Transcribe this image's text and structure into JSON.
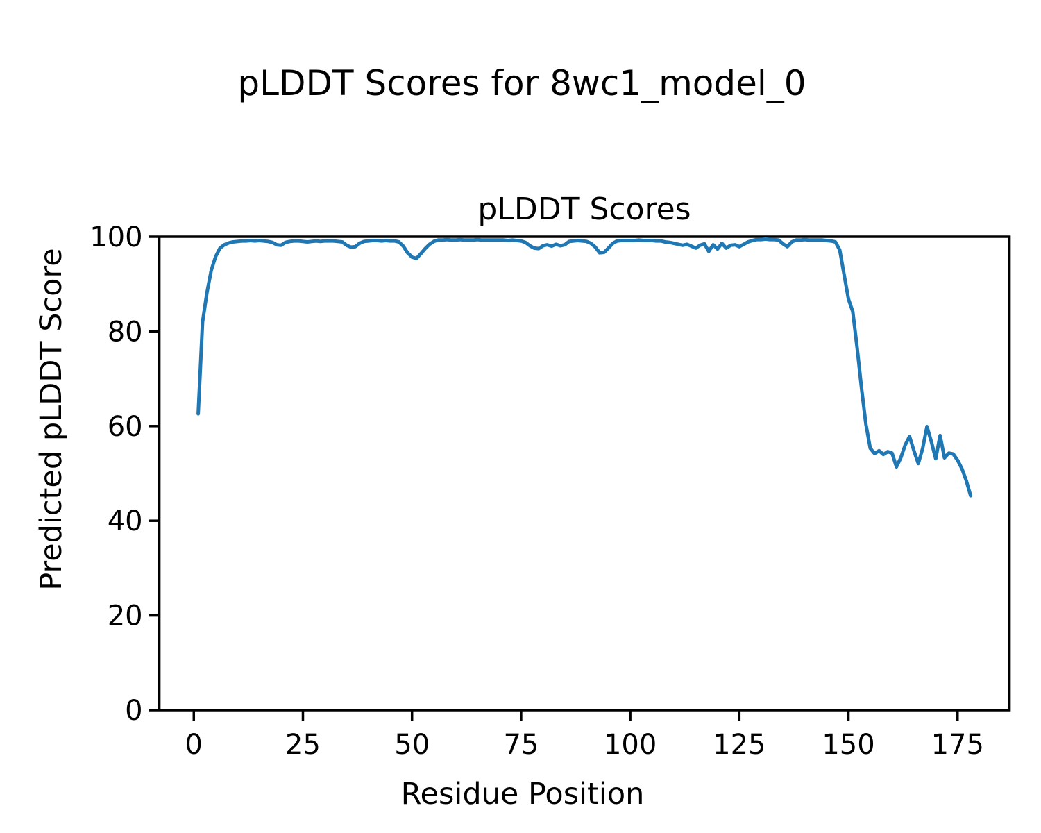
{
  "figure": {
    "suptitle": "pLDDT Scores for 8wc1_model_0",
    "background": "#ffffff",
    "text_color": "#000000"
  },
  "chart_data": {
    "type": "line",
    "title": "pLDDT Scores",
    "xlabel": "Residue Position",
    "ylabel": "Predicted pLDDT Score",
    "xlim": [
      -7.9,
      186.9
    ],
    "ylim": [
      0,
      100
    ],
    "xticks": [
      0,
      25,
      50,
      75,
      100,
      125,
      150,
      175
    ],
    "yticks": [
      0,
      20,
      40,
      60,
      80,
      100
    ],
    "grid": false,
    "legend": "none",
    "line_color": "#1f77b4",
    "series": [
      {
        "name": "pLDDT",
        "x": [
          1,
          2,
          3,
          4,
          5,
          6,
          7,
          8,
          9,
          10,
          11,
          12,
          13,
          14,
          15,
          16,
          17,
          18,
          19,
          20,
          21,
          22,
          23,
          24,
          25,
          26,
          27,
          28,
          29,
          30,
          31,
          32,
          33,
          34,
          35,
          36,
          37,
          38,
          39,
          40,
          41,
          42,
          43,
          44,
          45,
          46,
          47,
          48,
          49,
          50,
          51,
          52,
          53,
          54,
          55,
          56,
          57,
          58,
          59,
          60,
          61,
          62,
          63,
          64,
          65,
          66,
          67,
          68,
          69,
          70,
          71,
          72,
          73,
          74,
          75,
          76,
          77,
          78,
          79,
          80,
          81,
          82,
          83,
          84,
          85,
          86,
          87,
          88,
          89,
          90,
          91,
          92,
          93,
          94,
          95,
          96,
          97,
          98,
          99,
          100,
          101,
          102,
          103,
          104,
          105,
          106,
          107,
          108,
          109,
          110,
          111,
          112,
          113,
          114,
          115,
          116,
          117,
          118,
          119,
          120,
          121,
          122,
          123,
          124,
          125,
          126,
          127,
          128,
          129,
          130,
          131,
          132,
          133,
          134,
          135,
          136,
          137,
          138,
          139,
          140,
          141,
          142,
          143,
          144,
          145,
          146,
          147,
          148,
          149,
          150,
          151,
          152,
          153,
          154,
          155,
          156,
          157,
          158,
          159,
          160,
          161,
          162,
          163,
          164,
          165,
          166,
          167,
          168,
          169,
          170,
          171,
          172,
          173,
          174,
          175,
          176,
          177,
          178
        ],
        "y": [
          62.6,
          82.0,
          88.1,
          92.9,
          95.8,
          97.6,
          98.3,
          98.7,
          98.9,
          99.0,
          99.1,
          99.1,
          99.2,
          99.1,
          99.2,
          99.1,
          99.0,
          98.8,
          98.3,
          98.2,
          98.8,
          99.0,
          99.1,
          99.1,
          99.0,
          98.9,
          99.0,
          99.1,
          99.0,
          99.1,
          99.1,
          99.1,
          99.0,
          98.9,
          98.2,
          97.8,
          97.9,
          98.6,
          99.0,
          99.1,
          99.2,
          99.2,
          99.1,
          99.2,
          99.1,
          99.1,
          98.9,
          98.0,
          96.6,
          95.7,
          95.4,
          96.4,
          97.5,
          98.4,
          99.0,
          99.3,
          99.3,
          99.4,
          99.3,
          99.3,
          99.4,
          99.3,
          99.3,
          99.3,
          99.4,
          99.3,
          99.3,
          99.3,
          99.3,
          99.3,
          99.3,
          99.2,
          99.3,
          99.2,
          99.1,
          98.8,
          98.1,
          97.6,
          97.5,
          98.1,
          98.3,
          98.0,
          98.4,
          98.1,
          98.3,
          99.0,
          99.1,
          99.2,
          99.1,
          99.0,
          98.6,
          97.8,
          96.6,
          96.7,
          97.6,
          98.6,
          99.1,
          99.2,
          99.2,
          99.2,
          99.2,
          99.3,
          99.2,
          99.2,
          99.2,
          99.1,
          99.1,
          98.9,
          98.8,
          98.6,
          98.4,
          98.2,
          98.4,
          98.0,
          97.6,
          98.2,
          98.5,
          96.9,
          98.3,
          97.4,
          98.6,
          97.6,
          98.2,
          98.3,
          97.9,
          98.4,
          98.9,
          99.2,
          99.4,
          99.4,
          99.5,
          99.4,
          99.4,
          99.3,
          98.5,
          97.9,
          98.9,
          99.3,
          99.3,
          99.4,
          99.3,
          99.3,
          99.3,
          99.3,
          99.2,
          99.1,
          98.9,
          97.2,
          92.0,
          86.8,
          84.2,
          76.5,
          68.0,
          60.4,
          55.3,
          54.2,
          54.8,
          54.0,
          54.6,
          54.3,
          51.4,
          53.3,
          56.0,
          57.8,
          54.8,
          52.1,
          55.3,
          59.9,
          56.7,
          53.1,
          58.0,
          53.3,
          54.3,
          54.1,
          52.8,
          51.0,
          48.5,
          45.3
        ]
      }
    ]
  }
}
